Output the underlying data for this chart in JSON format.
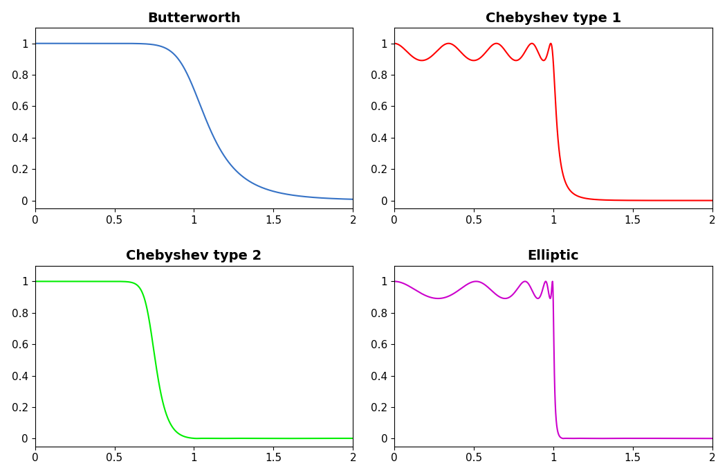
{
  "titles": [
    "Butterworth",
    "Chebyshev type 1",
    "Chebyshev type 2",
    "Elliptic"
  ],
  "colors": [
    "#3572C6",
    "#FF0000",
    "#00EE00",
    "#CC00CC"
  ],
  "xlim": [
    0,
    2
  ],
  "ylim": [
    -0.05,
    1.1
  ],
  "butter_order": 7,
  "cheb1_order": 9,
  "cheb2_order": 9,
  "ellip_order": 9,
  "ripple_db": 1.0,
  "rs_db": 60.0,
  "figsize": [
    10.51,
    6.86
  ],
  "title_fontsize": 14,
  "tick_fontsize": 11,
  "linewidth": 1.5
}
